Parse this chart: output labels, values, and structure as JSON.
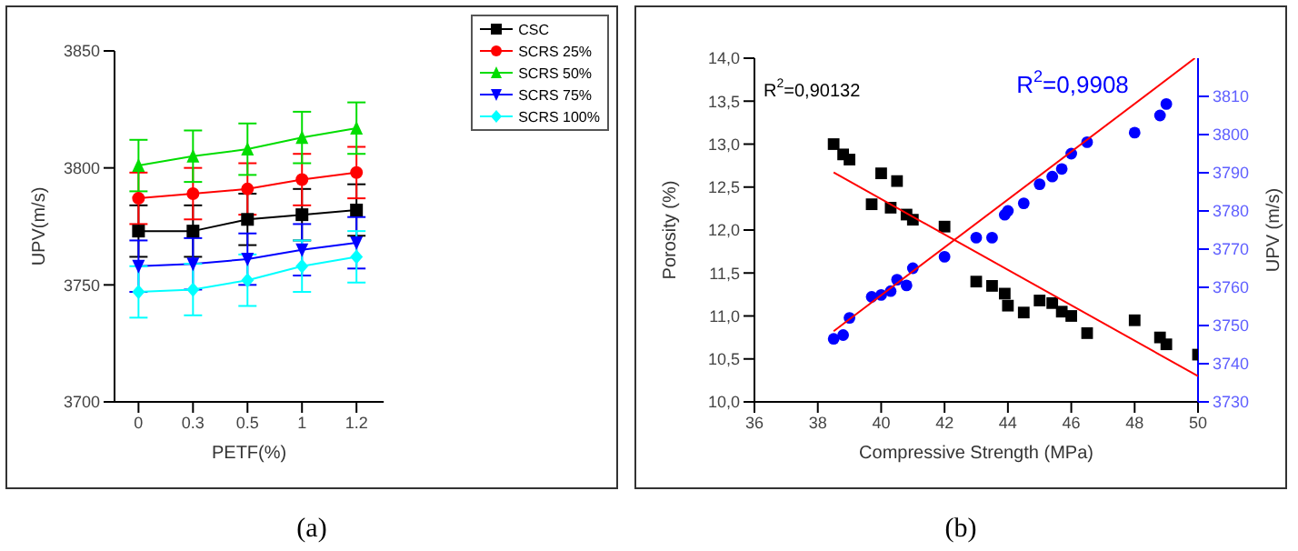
{
  "chart_data": [
    {
      "type": "line",
      "xlabel": "PETF(%)",
      "ylabel": "UPV(m/s)",
      "categories": [
        "0",
        "0.3",
        "0.5",
        "1",
        "1.2"
      ],
      "ylim": [
        3700,
        3850
      ],
      "yticks": [
        3700,
        3750,
        3800,
        3850
      ],
      "legend": "top right",
      "grid": false,
      "annotations": [
        "(a)"
      ],
      "series": [
        {
          "name": "CSC",
          "color": "#000000",
          "marker": "square",
          "values": [
            3773,
            3773,
            3778,
            3780,
            3782
          ],
          "errors": [
            11,
            11,
            11,
            11,
            11
          ]
        },
        {
          "name": "SCRS 25%",
          "color": "#ff0000",
          "marker": "circle",
          "values": [
            3787,
            3789,
            3791,
            3795,
            3798
          ],
          "errors": [
            11,
            11,
            11,
            11,
            11
          ]
        },
        {
          "name": "SCRS 50%",
          "color": "#00dd00",
          "marker": "triangle",
          "values": [
            3801,
            3805,
            3808,
            3813,
            3817
          ],
          "errors": [
            11,
            11,
            11,
            11,
            11
          ]
        },
        {
          "name": "SCRS 75%",
          "color": "#0000ff",
          "marker": "triangle-down",
          "values": [
            3758,
            3759,
            3761,
            3765,
            3768
          ],
          "errors": [
            11,
            11,
            11,
            11,
            11
          ]
        },
        {
          "name": "SCRS 100%",
          "color": "#00ffff",
          "marker": "diamond",
          "values": [
            3747,
            3748,
            3752,
            3758,
            3762
          ],
          "errors": [
            11,
            11,
            11,
            11,
            11
          ]
        }
      ]
    },
    {
      "type": "scatter",
      "xlabel": "Compressive Strength (MPa)",
      "ylabel": "Porosity (%)",
      "y2label": "UPV (m/s)",
      "xlim": [
        36,
        50
      ],
      "xticks": [
        36,
        38,
        40,
        42,
        44,
        46,
        48,
        50
      ],
      "ylim": [
        10,
        14
      ],
      "yticks": [
        {
          "value": 10,
          "label": "10,0"
        },
        {
          "value": 10.5,
          "label": "10,5"
        },
        {
          "value": 11,
          "label": "11,0"
        },
        {
          "value": 11.5,
          "label": "11,5"
        },
        {
          "value": 12,
          "label": "12,0"
        },
        {
          "value": 12.5,
          "label": "12,5"
        },
        {
          "value": 13,
          "label": "13,0"
        },
        {
          "value": 13.5,
          "label": "13,5"
        },
        {
          "value": 14,
          "label": "14,0"
        }
      ],
      "y2lim": [
        3730,
        3820
      ],
      "y2ticks": [
        3730,
        3740,
        3750,
        3760,
        3770,
        3780,
        3790,
        3800,
        3810
      ],
      "grid": false,
      "annotations": [
        "R$^{2}$=0,90132",
        "R$^{2}$=0,9908",
        "(b)"
      ],
      "series": [
        {
          "type": "scatter",
          "color": "#000000",
          "marker": "square",
          "x": [
            38.5,
            38.8,
            39,
            39.7,
            40,
            40.3,
            40.5,
            40.8,
            41,
            42,
            43,
            43.5,
            43.9,
            44,
            44.5,
            45,
            45.4,
            45.7,
            46,
            46.5,
            48,
            48.8,
            49,
            50
          ],
          "values": [
            13.0,
            12.88,
            12.82,
            12.3,
            12.66,
            12.26,
            12.57,
            12.18,
            12.12,
            12.04,
            11.4,
            11.35,
            11.26,
            11.12,
            11.04,
            11.18,
            11.15,
            11.05,
            11.0,
            10.8,
            10.95,
            10.75,
            10.67,
            10.55
          ]
        },
        {
          "type": "scatter",
          "color": "#0000ff",
          "marker": "circle",
          "axis": "y2",
          "x": [
            38.5,
            38.8,
            39,
            39.7,
            40,
            40.3,
            40.5,
            40.8,
            41,
            42,
            43,
            43.5,
            43.9,
            44,
            44.5,
            45,
            45.4,
            45.7,
            46,
            46.5,
            48,
            48.8,
            49
          ],
          "values": [
            3746.5,
            3747.5,
            3752,
            3757.5,
            3758,
            3759,
            3762,
            3760.5,
            3765,
            3768,
            3773,
            3773,
            3779,
            3780,
            3782,
            3787,
            3789,
            3791,
            3795,
            3798,
            3800.5,
            3805,
            3808
          ]
        },
        {
          "type": "line",
          "color": "#ff0000",
          "marker": "none",
          "x": [
            38.5,
            50
          ],
          "values": [
            12.67,
            10.3
          ]
        },
        {
          "type": "line",
          "color": "#ff0000",
          "marker": "none",
          "axis": "y2",
          "x": [
            38.5,
            49.9
          ],
          "values": [
            3748.5,
            3820
          ]
        }
      ]
    }
  ]
}
